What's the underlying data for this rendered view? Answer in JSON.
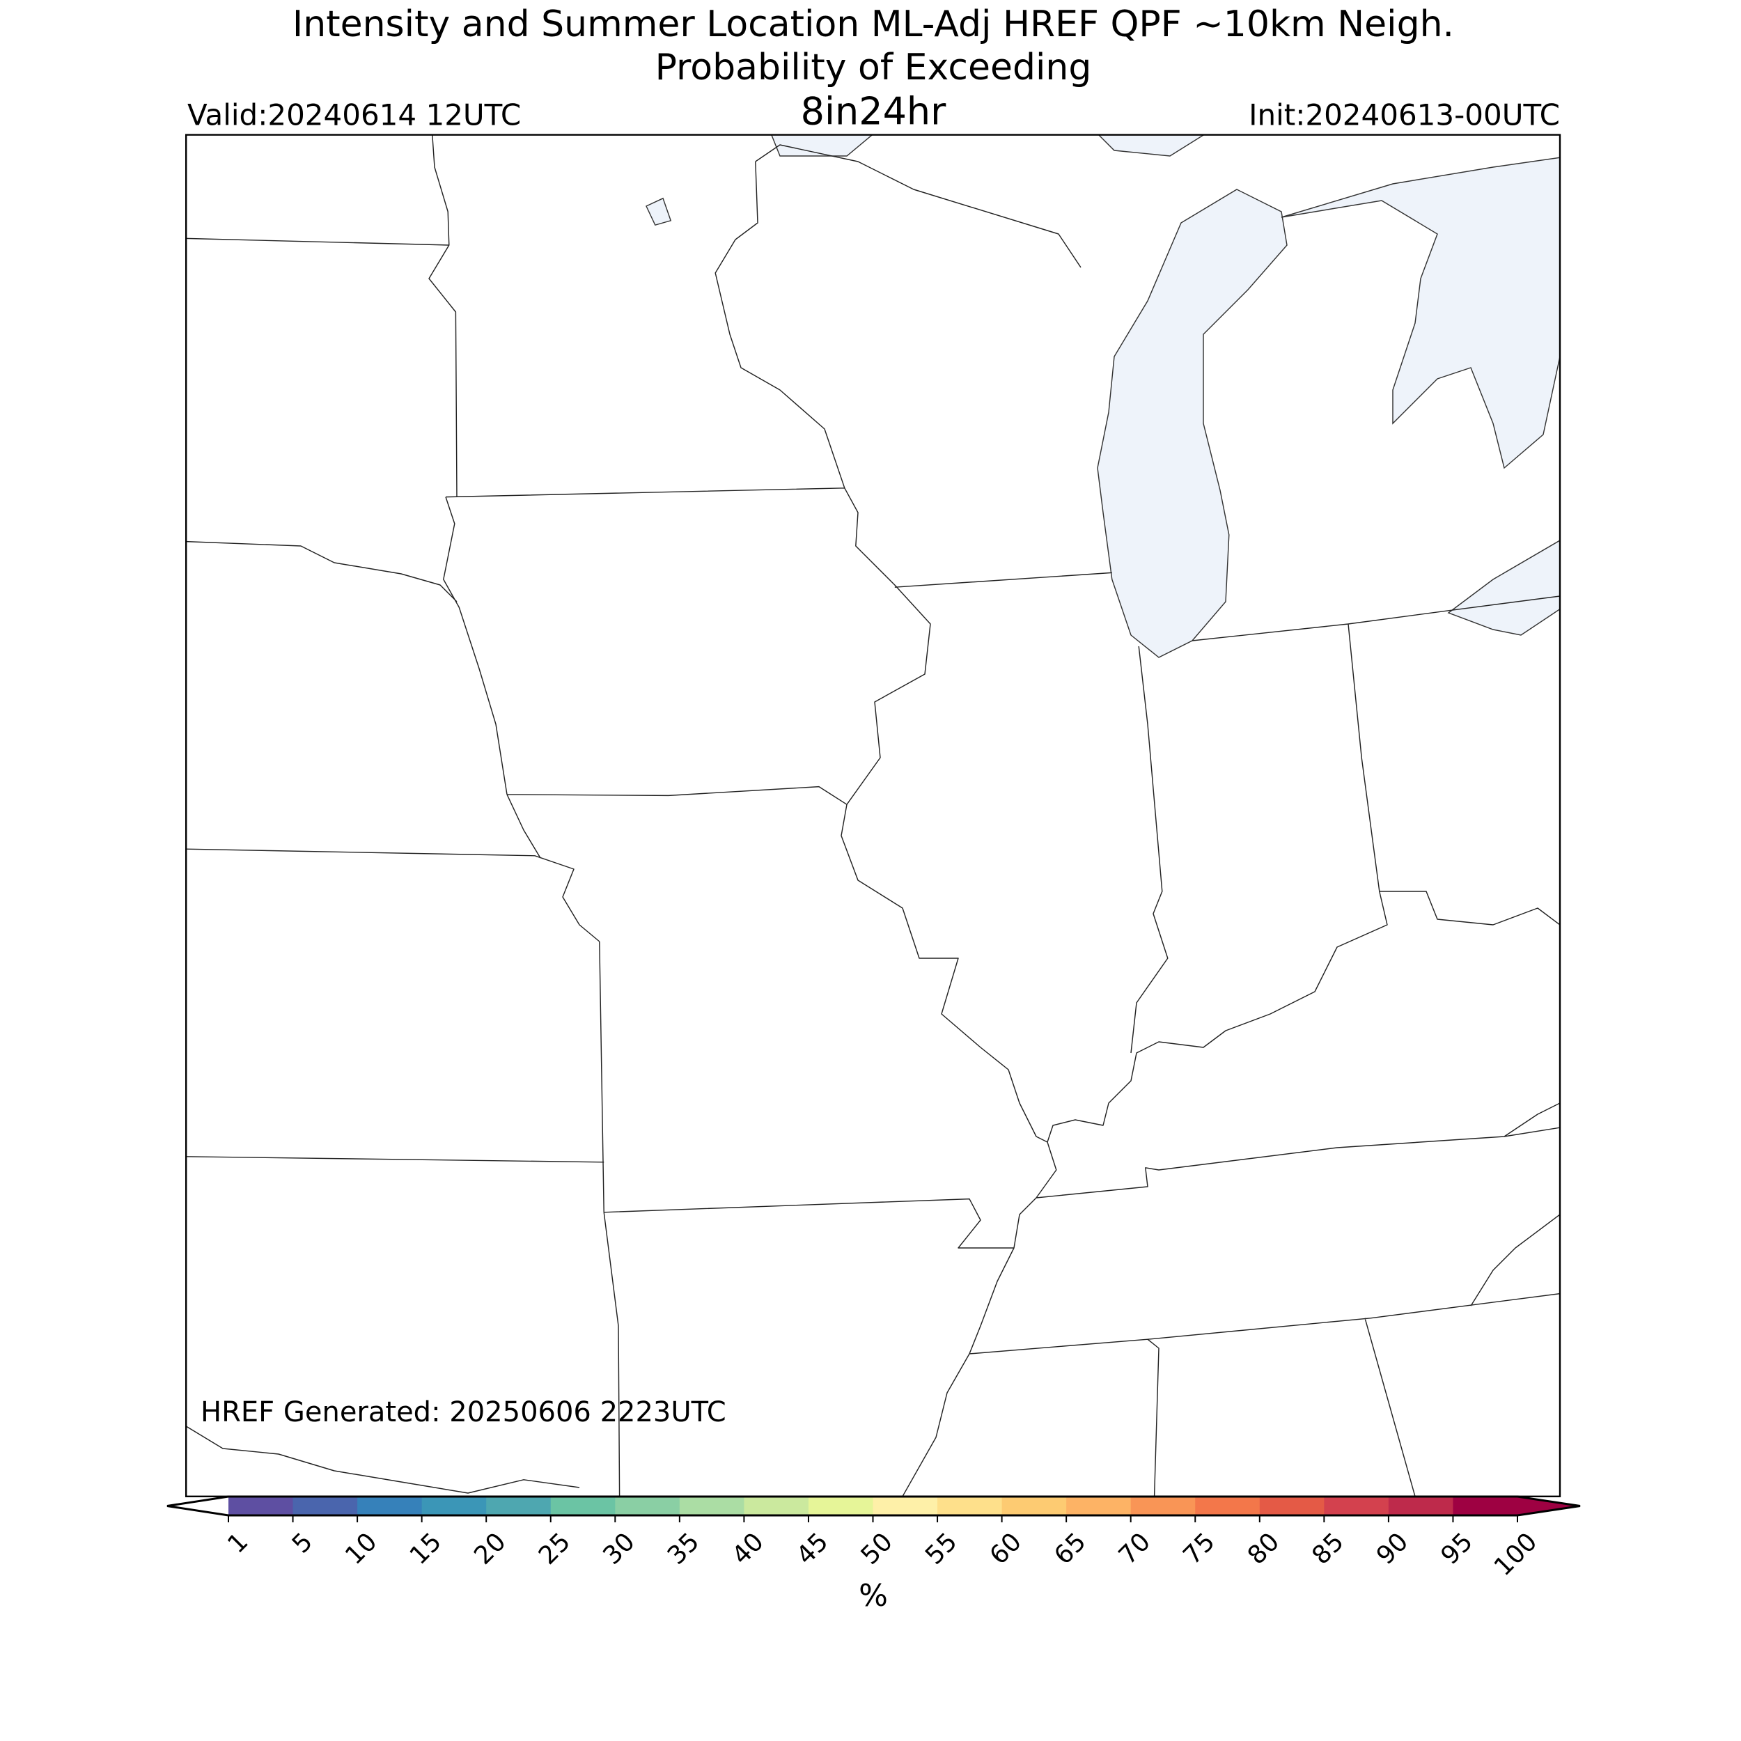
{
  "header": {
    "title": "Intensity and Summer Location ML-Adj HREF QPF ~10km Neigh.",
    "subtitle": "Probability of Exceeding",
    "threshold": "8in24hr",
    "valid": "Valid:20240614 12UTC",
    "init": "Init:20240613-00UTC"
  },
  "map": {
    "generated": "HREF Generated: 20250606 2223UTC"
  },
  "colorbar": {
    "label": "%",
    "ticks": [
      1,
      5,
      10,
      15,
      20,
      25,
      30,
      35,
      40,
      45,
      50,
      55,
      60,
      65,
      70,
      75,
      80,
      85,
      90,
      95,
      100
    ],
    "colors": [
      "#5e4fa2",
      "#4a65ad",
      "#3681ba",
      "#3b96b7",
      "#4ea7b0",
      "#6bc4a4",
      "#8acfa4",
      "#abdda4",
      "#cbe99e",
      "#e6f598",
      "#fef0a8",
      "#fee08b",
      "#fdcb72",
      "#fdb365",
      "#f99556",
      "#f3774a",
      "#e45a46",
      "#d3414e",
      "#be2a4b",
      "#9e0142"
    ],
    "under_color": "#ffffff",
    "over_color": "#9e0142"
  }
}
